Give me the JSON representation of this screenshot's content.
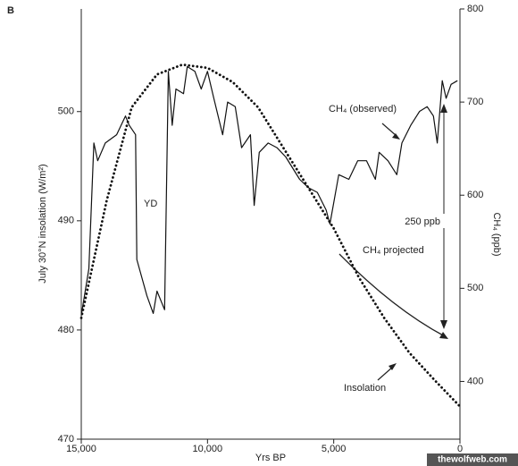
{
  "chart_data": {
    "type": "line",
    "panel_label": "B",
    "xlabel": "Yrs BP",
    "ylabel": "July 30°N insolation (W/m²)",
    "y2label": "CH₄ (ppb)",
    "xlim": [
      15000,
      0
    ],
    "xticks": [
      {
        "value": 15000,
        "label": "15,000"
      },
      {
        "value": 10000,
        "label": "10,000"
      },
      {
        "value": 5000,
        "label": "5,000"
      },
      0
    ],
    "ylim": [
      470,
      509.4
    ],
    "yticks": [
      470,
      480,
      490,
      500
    ],
    "y2lim": [
      338,
      800
    ],
    "y2ticks": [
      400,
      500,
      600,
      700,
      800
    ],
    "series": [
      {
        "name": "Insolation",
        "color": "#111111",
        "style": "dotted",
        "axis": "y",
        "x": [
          15000,
          14000,
          13000,
          12000,
          11000,
          10000,
          9000,
          8000,
          7000,
          6000,
          5000,
          4000,
          3000,
          2000,
          1000,
          0
        ],
        "values": [
          481.1,
          491.8,
          500.4,
          503.4,
          504.3,
          504.0,
          502.7,
          500.4,
          496.7,
          493.0,
          489.3,
          484.8,
          481.1,
          477.9,
          475.4,
          473.0
        ]
      },
      {
        "name": "CH₄ (observed)",
        "color": "#111111",
        "style": "solid",
        "axis": "y2",
        "x": [
          15000,
          14700,
          14500,
          14350,
          14050,
          13600,
          13250,
          13100,
          12850,
          12800,
          12400,
          12150,
          12000,
          11700,
          11550,
          11400,
          11250,
          10950,
          10800,
          10500,
          10250,
          10000,
          9750,
          9400,
          9200,
          8900,
          8650,
          8300,
          8150,
          7950,
          7600,
          7250,
          6900,
          6350,
          6000,
          5650,
          5300,
          5150,
          4800,
          4400,
          4050,
          3700,
          3350,
          3200,
          2850,
          2500,
          2300,
          1950,
          1600,
          1300,
          1050,
          900,
          700,
          550,
          350,
          100
        ],
        "values": [
          471,
          521,
          656,
          637,
          656,
          665,
          685,
          675,
          665,
          531,
          492,
          473,
          497,
          477,
          733,
          675,
          714,
          709,
          738,
          733,
          714,
          733,
          704,
          665,
          700,
          695,
          651,
          665,
          589,
          646,
          656,
          651,
          641,
          617,
          608,
          603,
          584,
          569,
          622,
          617,
          637,
          637,
          617,
          646,
          637,
          622,
          656,
          675,
          690,
          695,
          685,
          656,
          723,
          704,
          719,
          723
        ]
      }
    ],
    "annotations": [
      "YD",
      "250 ppb",
      "CH₄ projected"
    ],
    "watermark": "thewolfweb.com"
  }
}
